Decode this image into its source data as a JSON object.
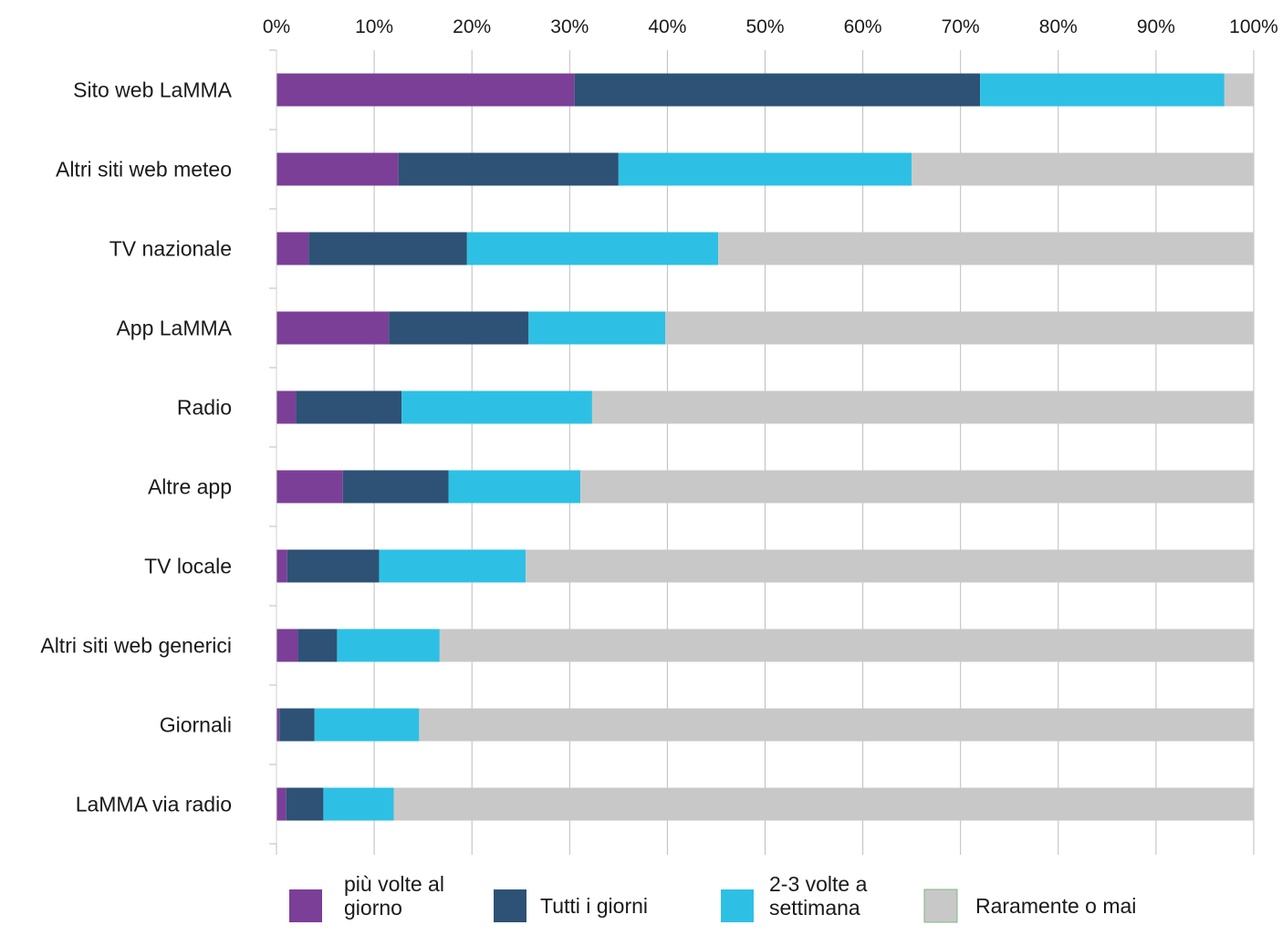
{
  "chart_data": {
    "type": "bar",
    "orientation": "horizontal",
    "stacked": true,
    "percent_stacked": true,
    "title": "",
    "xlabel": "",
    "ylabel": "",
    "xlim": [
      0,
      100
    ],
    "x_ticks": [
      "0%",
      "10%",
      "20%",
      "30%",
      "40%",
      "50%",
      "60%",
      "70%",
      "80%",
      "90%",
      "100%"
    ],
    "x_axis_position": "top",
    "grid": true,
    "legend_position": "bottom",
    "categories": [
      "Sito web LaMMA",
      "Altri siti web meteo",
      "TV nazionale",
      "App LaMMA",
      "Radio",
      "Altre app",
      "TV locale",
      "Altri siti web generici",
      "Giornali",
      "LaMMA via radio"
    ],
    "series": [
      {
        "name": "più volte al giorno",
        "legend_lines": [
          "più volte al",
          "giorno"
        ],
        "color": "#7b3f98",
        "values": [
          30.5,
          12.5,
          3.3,
          11.5,
          2.0,
          6.8,
          1.1,
          2.2,
          0.3,
          1.0
        ]
      },
      {
        "name": "Tutti i giorni",
        "legend_lines": [
          "Tutti i giorni"
        ],
        "color": "#2d5275",
        "values": [
          41.5,
          22.5,
          16.2,
          14.3,
          10.8,
          10.8,
          9.4,
          4.0,
          3.6,
          3.8
        ]
      },
      {
        "name": "2-3 volte a settimana",
        "legend_lines": [
          "2-3 volte a",
          "settimana"
        ],
        "color": "#2ec0e4",
        "values": [
          25.0,
          30.0,
          25.7,
          14.0,
          19.5,
          13.5,
          15.0,
          10.5,
          10.7,
          7.2
        ]
      },
      {
        "name": "Raramente o mai",
        "legend_lines": [
          "Raramente o mai"
        ],
        "color": "#c8c8c8",
        "values": [
          3.0,
          35.0,
          54.8,
          60.2,
          67.7,
          68.9,
          74.5,
          83.3,
          85.4,
          88.0
        ]
      }
    ]
  }
}
